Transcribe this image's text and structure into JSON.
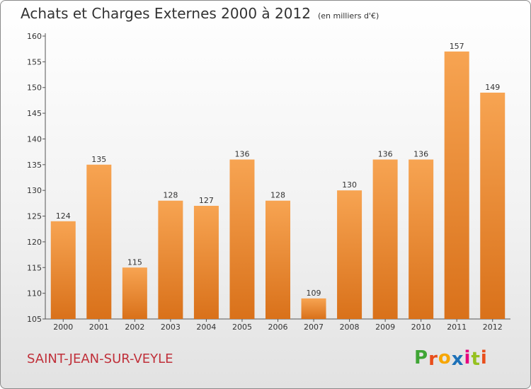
{
  "title": "Achats et Charges Externes 2000 à 2012",
  "subtitle": "(en milliers d'€)",
  "city": "SAINT-JEAN-SUR-VEYLE",
  "logo": {
    "letters": [
      "P",
      "r",
      "o",
      "x",
      "i",
      "t",
      "i"
    ],
    "colors": [
      "#3fa535",
      "#e94e1b",
      "#f7a600",
      "#1d71b8",
      "#e6007e",
      "#95c11f",
      "#e94e1b"
    ]
  },
  "colors": {
    "bar_light": "#f7a452",
    "bar_dark": "#d9711a",
    "text": "#333333",
    "city": "#c0303a"
  },
  "chart_data": {
    "type": "bar",
    "categories": [
      "2000",
      "2001",
      "2002",
      "2003",
      "2004",
      "2005",
      "2006",
      "2007",
      "2008",
      "2009",
      "2010",
      "2011",
      "2012"
    ],
    "values": [
      124,
      135,
      115,
      128,
      127,
      136,
      128,
      109,
      130,
      136,
      136,
      157,
      149
    ],
    "data_labels": [
      "124",
      "135",
      "115",
      "128",
      "127",
      "136",
      "128",
      "109",
      "130",
      "136",
      "136",
      "157",
      "149"
    ],
    "ylim": [
      105,
      160
    ],
    "yticks": [
      105,
      110,
      115,
      120,
      125,
      130,
      135,
      140,
      145,
      150,
      155,
      160
    ],
    "ytick_labels": [
      "105",
      "110",
      "115",
      "120",
      "125",
      "130",
      "135",
      "140",
      "145",
      "150",
      "155",
      "160"
    ],
    "grid": false,
    "legend": "none"
  }
}
